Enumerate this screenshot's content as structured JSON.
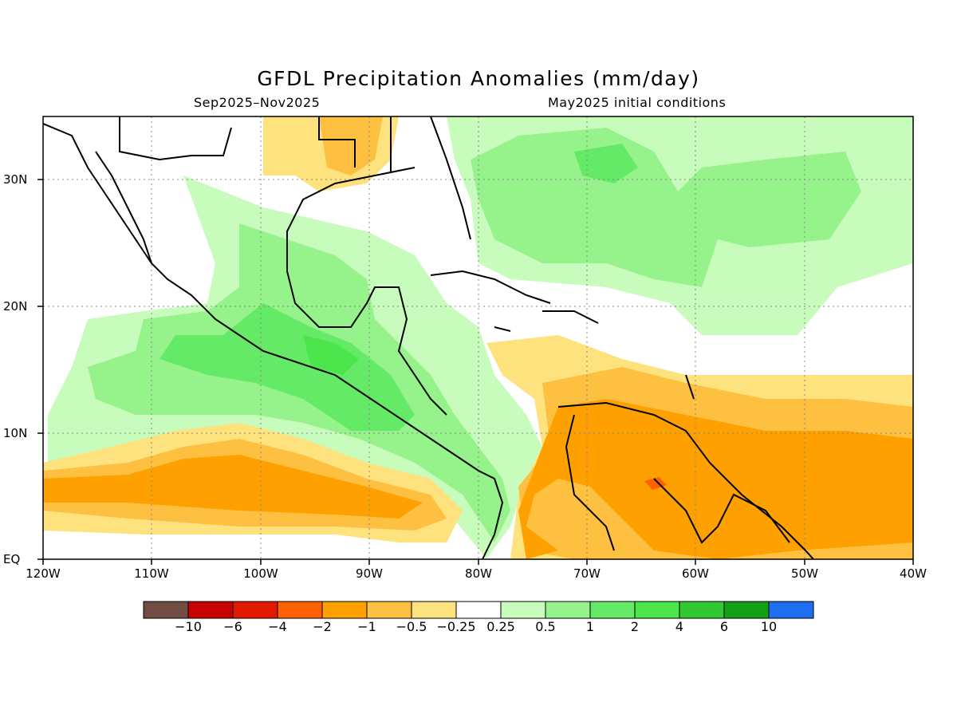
{
  "title": "GFDL Precipitation Anomalies (mm/day)",
  "subtitle_left": "Sep2025–Nov2025",
  "subtitle_right": "May2025 initial conditions",
  "map": {
    "region": {
      "lon_min": -120,
      "lon_max": -40,
      "lat_min": 0,
      "lat_max": 35
    },
    "lat_labels": [
      "30N",
      "20N",
      "10N",
      "EQ"
    ],
    "lon_labels": [
      "120W",
      "110W",
      "100W",
      "90W",
      "80W",
      "70W",
      "60W",
      "50W",
      "40W"
    ],
    "gridlines": "dotted"
  },
  "colorbar": {
    "colors": [
      "#704c42",
      "#c80000",
      "#e41a00",
      "#ff6000",
      "#fea000",
      "#fec040",
      "#fee27e",
      "#ffffff",
      "#c8fcbc",
      "#96f28a",
      "#64ea66",
      "#4ce64c",
      "#32c832",
      "#14a014",
      "#1e6ef0"
    ],
    "labels": [
      "−10",
      "−6",
      "−4",
      "−2",
      "−1",
      "−0.5",
      "−0.25",
      "0.25",
      "0.5",
      "1",
      "2",
      "4",
      "6",
      "10"
    ]
  }
}
